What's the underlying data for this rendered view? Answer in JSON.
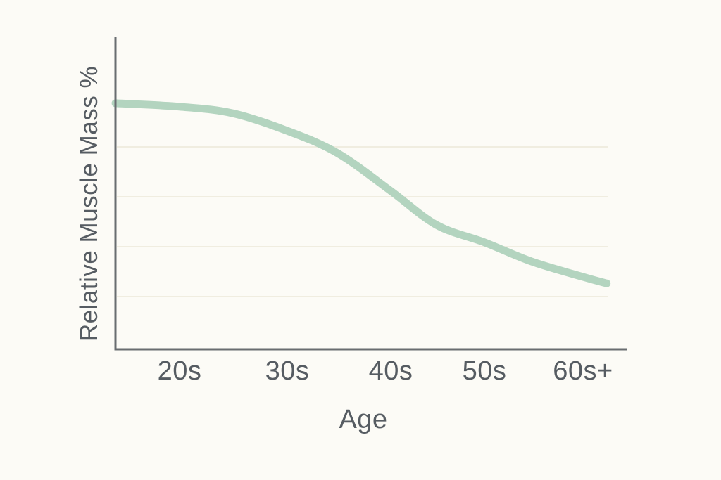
{
  "page": {
    "background": "#fcfbf6"
  },
  "chart_data": {
    "type": "line",
    "title": "",
    "xlabel": "Age",
    "ylabel": "Relative Muscle Mass %",
    "categories": [
      "20s",
      "30s",
      "40s",
      "50s",
      "60s+"
    ],
    "series": [
      {
        "name": "Relative Muscle Mass %",
        "values": [
          78,
          70,
          51,
          34,
          23
        ]
      }
    ],
    "curve_points": [
      [
        0.0,
        78.9
      ],
      [
        0.125,
        77.8
      ],
      [
        0.229,
        75.7
      ],
      [
        0.336,
        70.1
      ],
      [
        0.435,
        62.9
      ],
      [
        0.539,
        50.8
      ],
      [
        0.628,
        40.0
      ],
      [
        0.722,
        34.4
      ],
      [
        0.814,
        28.3
      ],
      [
        0.914,
        23.4
      ],
      [
        0.961,
        21.3
      ]
    ],
    "ylim": [
      0,
      100
    ],
    "y_tick_labels": [],
    "grid": "horizontal-only",
    "legend": "none",
    "line_color": "#b3d4bf",
    "axis_color": "#696d70",
    "grid_color": "#f0ede0",
    "label_color": "#565c62"
  }
}
